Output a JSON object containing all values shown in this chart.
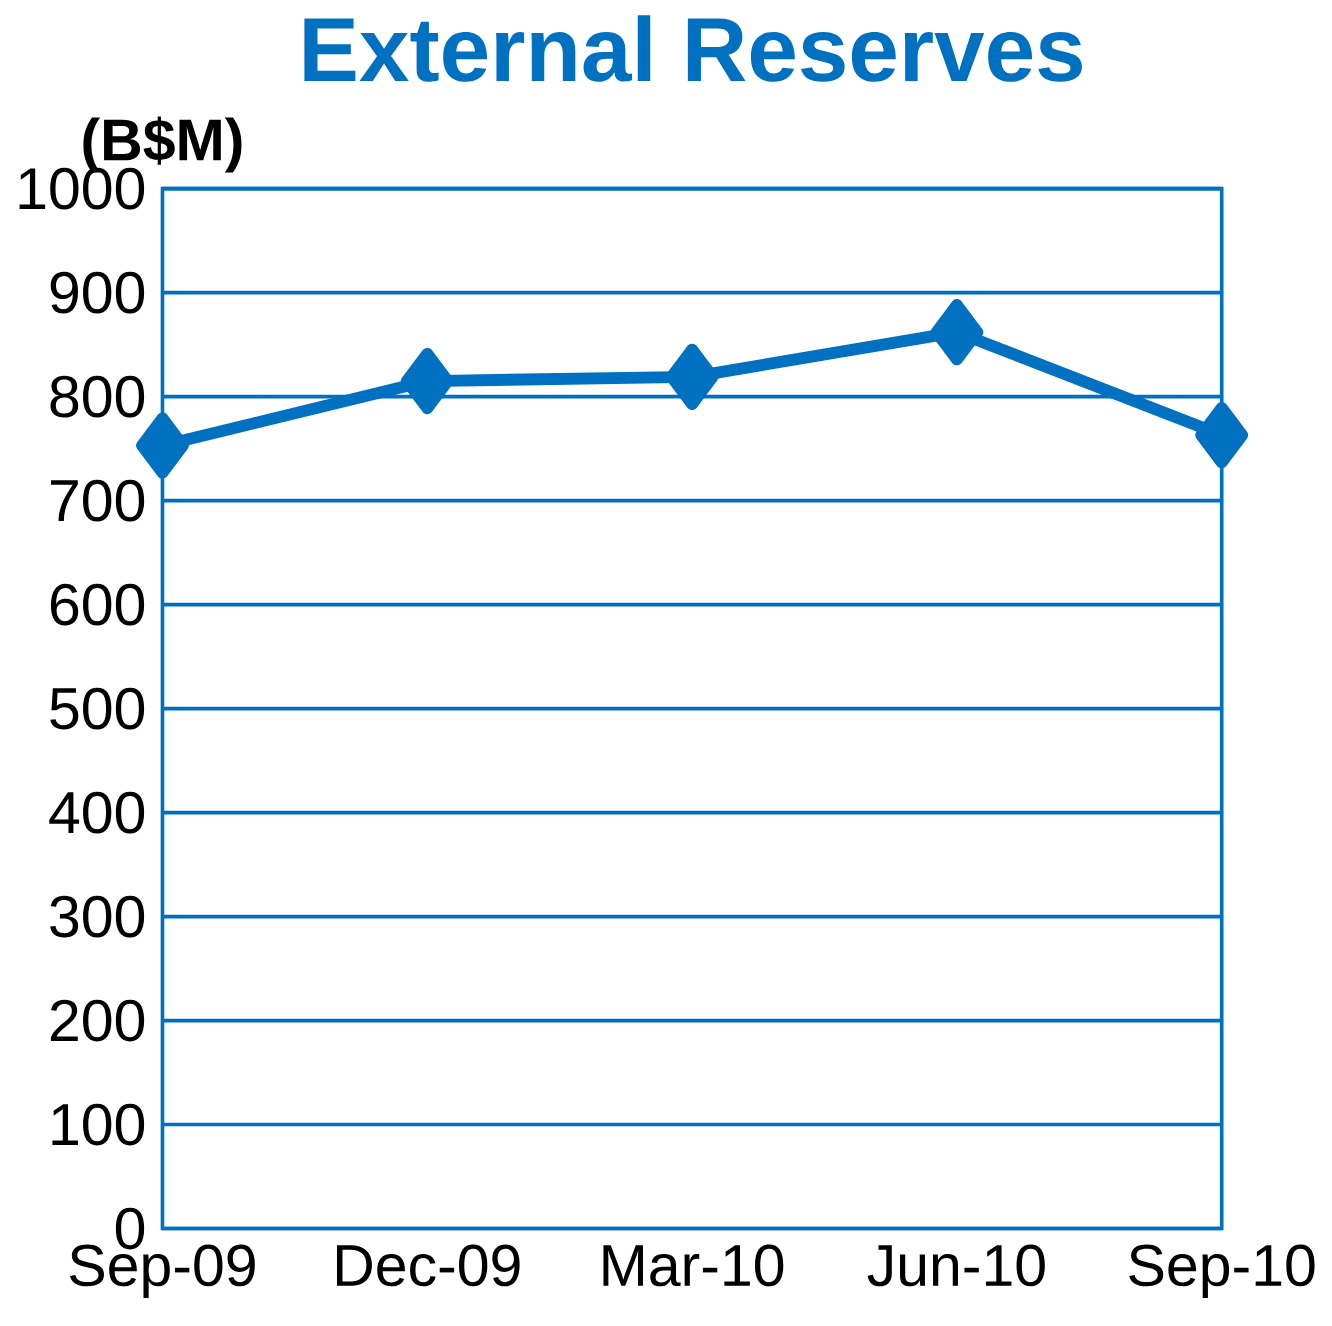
{
  "chart_data": {
    "type": "line",
    "title": "External Reserves",
    "ylabel": "(B$M)",
    "categories": [
      "Sep-09",
      "Dec-09",
      "Mar-10",
      "Jun-10",
      "Sep-10"
    ],
    "series": [
      {
        "color": "#0070c0",
        "values": [
          753,
          815,
          819,
          862,
          763
        ]
      }
    ],
    "ylim": [
      0,
      1000
    ],
    "yticks": [
      0,
      100,
      200,
      300,
      400,
      500,
      600,
      700,
      800,
      900,
      1000
    ],
    "grid": "y",
    "marker": "diamond",
    "line_style": "solid"
  }
}
